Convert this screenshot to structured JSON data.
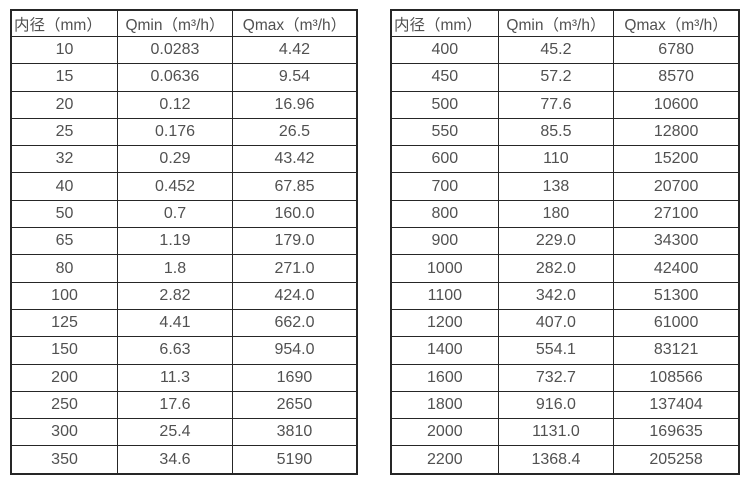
{
  "page": {
    "background_color": "#ffffff",
    "border_color": "#262626",
    "text_color": "#515151"
  },
  "tables": [
    {
      "name": "flow-table-small-diameters",
      "headers": [
        "内径（mm）",
        "Qmin（m³/h）",
        "Qmax（m³/h）"
      ],
      "header_keys": [
        "diameter",
        "qmin",
        "qmax"
      ],
      "rows": [
        [
          "10",
          "0.0283",
          "4.42"
        ],
        [
          "15",
          "0.0636",
          "9.54"
        ],
        [
          "20",
          "0.12",
          "16.96"
        ],
        [
          "25",
          "0.176",
          "26.5"
        ],
        [
          "32",
          "0.29",
          "43.42"
        ],
        [
          "40",
          "0.452",
          "67.85"
        ],
        [
          "50",
          "0.7",
          "160.0"
        ],
        [
          "65",
          "1.19",
          "179.0"
        ],
        [
          "80",
          "1.8",
          "271.0"
        ],
        [
          "100",
          "2.82",
          "424.0"
        ],
        [
          "125",
          "4.41",
          "662.0"
        ],
        [
          "150",
          "6.63",
          "954.0"
        ],
        [
          "200",
          "11.3",
          "1690"
        ],
        [
          "250",
          "17.6",
          "2650"
        ],
        [
          "300",
          "25.4",
          "3810"
        ],
        [
          "350",
          "34.6",
          "5190"
        ]
      ]
    },
    {
      "name": "flow-table-large-diameters",
      "headers": [
        "内径（mm）",
        "Qmin（m³/h）",
        "Qmax（m³/h）"
      ],
      "header_keys": [
        "diameter",
        "qmin",
        "qmax"
      ],
      "rows": [
        [
          "400",
          "45.2",
          "6780"
        ],
        [
          "450",
          "57.2",
          "8570"
        ],
        [
          "500",
          "77.6",
          "10600"
        ],
        [
          "550",
          "85.5",
          "12800"
        ],
        [
          "600",
          "110",
          "15200"
        ],
        [
          "700",
          "138",
          "20700"
        ],
        [
          "800",
          "180",
          "27100"
        ],
        [
          "900",
          "229.0",
          "34300"
        ],
        [
          "1000",
          "282.0",
          "42400"
        ],
        [
          "1100",
          "342.0",
          "51300"
        ],
        [
          "1200",
          "407.0",
          "61000"
        ],
        [
          "1400",
          "554.1",
          "83121"
        ],
        [
          "1600",
          "732.7",
          "108566"
        ],
        [
          "1800",
          "916.0",
          "137404"
        ],
        [
          "2000",
          "1131.0",
          "169635"
        ],
        [
          "2200",
          "1368.4",
          "205258"
        ]
      ]
    }
  ]
}
